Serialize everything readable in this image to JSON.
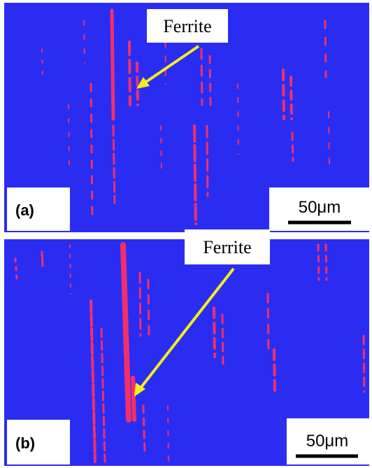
{
  "panels": [
    {
      "label": "(a)",
      "annotation": "Ferrite",
      "scale": "50μm"
    },
    {
      "label": "(b)",
      "annotation": "Ferrite",
      "scale": "50μm"
    }
  ]
}
